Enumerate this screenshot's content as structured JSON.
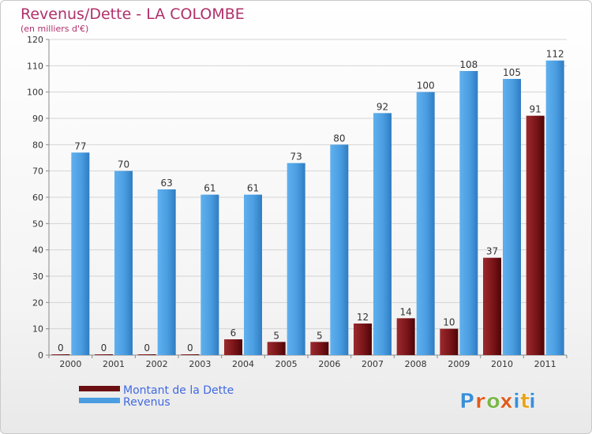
{
  "chart_data": {
    "type": "bar",
    "title": "Revenus/Dette - LA COLOMBE",
    "subtitle": "(en milliers d'€)",
    "categories": [
      "2000",
      "2001",
      "2002",
      "2003",
      "2004",
      "2005",
      "2006",
      "2007",
      "2008",
      "2009",
      "2010",
      "2011"
    ],
    "series": [
      {
        "name": "Montant de la Dette",
        "color": "#6b0f12",
        "values": [
          0,
          0,
          0,
          0,
          6,
          5,
          5,
          12,
          14,
          10,
          37,
          91
        ]
      },
      {
        "name": "Revenus",
        "color": "#4a9de0",
        "values": [
          77,
          70,
          63,
          61,
          61,
          73,
          80,
          92,
          100,
          108,
          105,
          112
        ]
      }
    ],
    "ylim": [
      0,
      120
    ],
    "yticks": [
      0,
      10,
      20,
      30,
      40,
      50,
      60,
      70,
      80,
      90,
      100,
      110,
      120
    ],
    "grid": true,
    "legend": "bottom-left",
    "title_color": "#b0306a",
    "legend_text_color": "#4169e1"
  },
  "logo": {
    "text": "Proxiti",
    "letters": [
      "P",
      "r",
      "o",
      "x",
      "i",
      "t",
      "i"
    ],
    "colors": [
      "#3a8fd8",
      "#e05a1a",
      "#7ab648",
      "#e05a1a",
      "#3a8fd8",
      "#e8a317",
      "#3a8fd8"
    ]
  }
}
